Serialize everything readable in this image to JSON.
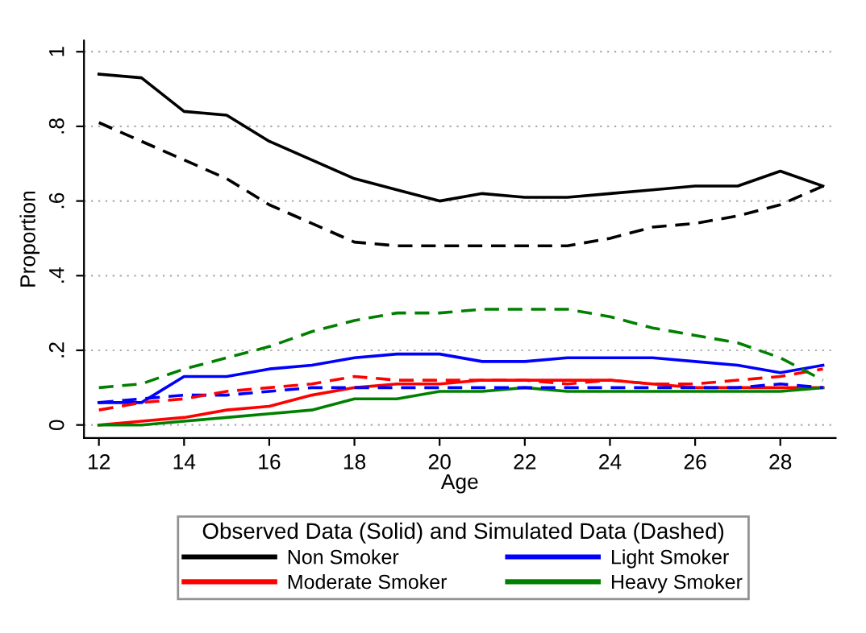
{
  "chart_data": {
    "type": "line",
    "xlabel": "Age",
    "ylabel": "Proportion",
    "legend_title": "Observed Data (Solid) and Simulated Data (Dashed)",
    "x": [
      12,
      13,
      14,
      15,
      16,
      17,
      18,
      19,
      20,
      21,
      22,
      23,
      24,
      25,
      26,
      27,
      28,
      29
    ],
    "series": [
      {
        "name": "Non Smoker",
        "color": "#000000",
        "line_style": "solid",
        "values": [
          0.94,
          0.93,
          0.84,
          0.83,
          0.76,
          0.71,
          0.66,
          0.63,
          0.6,
          0.62,
          0.61,
          0.61,
          0.62,
          0.63,
          0.64,
          0.64,
          0.68,
          0.64
        ]
      },
      {
        "name": "Light Smoker",
        "color": "#0000ff",
        "line_style": "solid",
        "values": [
          0.06,
          0.06,
          0.13,
          0.13,
          0.15,
          0.16,
          0.18,
          0.19,
          0.19,
          0.17,
          0.17,
          0.18,
          0.18,
          0.18,
          0.17,
          0.16,
          0.14,
          0.16
        ]
      },
      {
        "name": "Moderate Smoker",
        "color": "#ff0000",
        "line_style": "solid",
        "values": [
          0.0,
          0.01,
          0.02,
          0.04,
          0.05,
          0.08,
          0.1,
          0.11,
          0.11,
          0.12,
          0.12,
          0.12,
          0.12,
          0.11,
          0.1,
          0.1,
          0.1,
          0.1
        ]
      },
      {
        "name": "Heavy Smoker",
        "color": "#008000",
        "line_style": "solid",
        "values": [
          0.0,
          0.0,
          0.01,
          0.02,
          0.03,
          0.04,
          0.07,
          0.07,
          0.09,
          0.09,
          0.1,
          0.09,
          0.09,
          0.09,
          0.09,
          0.09,
          0.09,
          0.1
        ]
      },
      {
        "color": "#000000",
        "line_style": "dashed",
        "values": [
          0.81,
          0.76,
          0.71,
          0.66,
          0.59,
          0.54,
          0.49,
          0.48,
          0.48,
          0.48,
          0.48,
          0.48,
          0.5,
          0.53,
          0.54,
          0.56,
          0.59,
          0.64
        ]
      },
      {
        "color": "#0000ff",
        "line_style": "dashed",
        "values": [
          0.06,
          0.07,
          0.08,
          0.08,
          0.09,
          0.1,
          0.1,
          0.1,
          0.1,
          0.1,
          0.1,
          0.1,
          0.1,
          0.1,
          0.1,
          0.1,
          0.11,
          0.1
        ]
      },
      {
        "color": "#ff0000",
        "line_style": "dashed",
        "values": [
          0.04,
          0.06,
          0.07,
          0.09,
          0.1,
          0.11,
          0.13,
          0.12,
          0.12,
          0.12,
          0.12,
          0.11,
          0.12,
          0.11,
          0.11,
          0.12,
          0.13,
          0.15
        ]
      },
      {
        "color": "#008000",
        "line_style": "dashed",
        "values": [
          0.1,
          0.11,
          0.15,
          0.18,
          0.21,
          0.25,
          0.28,
          0.3,
          0.3,
          0.31,
          0.31,
          0.31,
          0.29,
          0.26,
          0.24,
          0.22,
          0.18,
          0.12
        ]
      }
    ],
    "xlim": [
      11.65,
      29.3
    ],
    "ylim": [
      -0.035,
      1.03
    ],
    "xticks": [
      12,
      14,
      16,
      18,
      20,
      22,
      24,
      26,
      28
    ],
    "yticks": [
      0,
      {
        "value": 0.2,
        "label": ".2"
      },
      {
        "value": 0.4,
        "label": ".4"
      },
      {
        "value": 0.6,
        "label": ".6"
      },
      {
        "value": 0.8,
        "label": ".8"
      },
      1
    ],
    "grid": "y",
    "legend": "bottom",
    "marker": "none"
  }
}
